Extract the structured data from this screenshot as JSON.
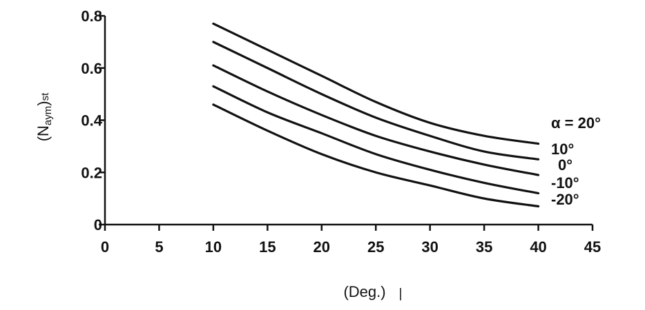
{
  "chart_data": {
    "type": "line",
    "xlabel": "(Deg.)",
    "ylabel": {
      "main": "(N",
      "sub": "aym",
      "close": ")",
      "post": "st"
    },
    "xlim": [
      0,
      45
    ],
    "ylim": [
      0,
      0.8
    ],
    "x_ticks": [
      0,
      5,
      10,
      15,
      20,
      25,
      30,
      35,
      40,
      45
    ],
    "x_tick_labels": [
      "0",
      "5",
      "10",
      "15",
      "20",
      "25",
      "30",
      "35",
      "40",
      "45"
    ],
    "y_ticks": [
      0,
      0.2,
      0.4,
      0.6,
      0.8
    ],
    "y_tick_labels": [
      "0",
      "0.2",
      "0.4",
      "0.6",
      "0.8"
    ],
    "grid": false,
    "x": [
      10,
      15,
      20,
      25,
      30,
      35,
      40
    ],
    "series": [
      {
        "name": "α = 20°",
        "values": [
          0.77,
          0.67,
          0.57,
          0.47,
          0.39,
          0.34,
          0.31
        ]
      },
      {
        "name": "10°",
        "values": [
          0.7,
          0.6,
          0.5,
          0.41,
          0.34,
          0.28,
          0.25
        ]
      },
      {
        "name": "0°",
        "values": [
          0.61,
          0.51,
          0.42,
          0.34,
          0.28,
          0.23,
          0.19
        ]
      },
      {
        "name": "-10°",
        "values": [
          0.53,
          0.43,
          0.35,
          0.27,
          0.21,
          0.16,
          0.12
        ]
      },
      {
        "name": "-20°",
        "values": [
          0.46,
          0.36,
          0.27,
          0.2,
          0.15,
          0.1,
          0.07
        ]
      }
    ]
  }
}
